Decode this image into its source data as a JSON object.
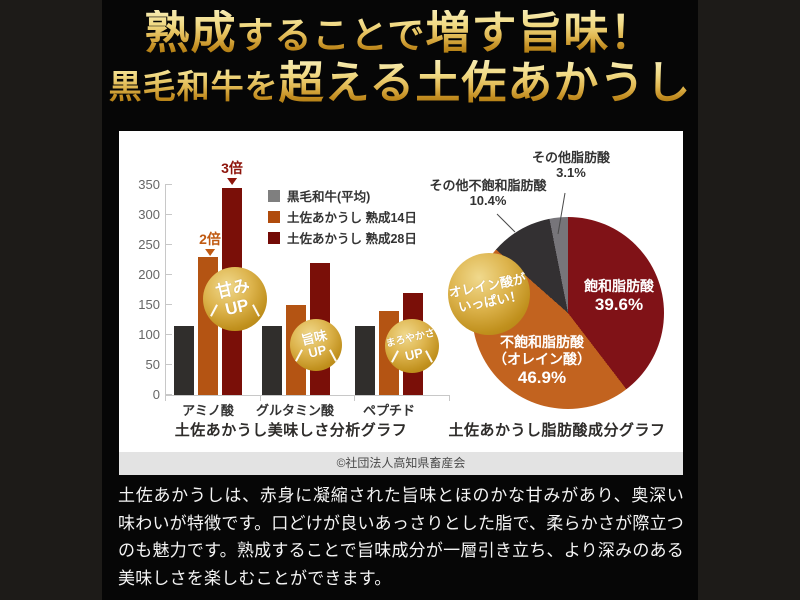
{
  "header": {
    "line1_seg1": "熟成",
    "line1_seg2": "することで",
    "line1_seg3": "増す旨味！",
    "line2_seg1": "黒毛和牛を",
    "line2_seg2": "超える土佐あかうし",
    "gold_top": "#f1da84",
    "gold_bottom": "#a8770f"
  },
  "chart_data": [
    {
      "type": "bar",
      "title": "土佐あかうし美味しさ分析グラフ",
      "categories": [
        "アミノ酸",
        "グルタミン酸",
        "ペプチド"
      ],
      "series": [
        {
          "name": "黒毛和牛(平均)",
          "color": "#7f7f7f",
          "bar_color": "#302e2c",
          "values": [
            115,
            115,
            115
          ]
        },
        {
          "name": "土佐あかうし 熟成14日",
          "color": "#b04b0c",
          "bar_color": "#b45413",
          "values": [
            230,
            150,
            140
          ]
        },
        {
          "name": "土佐あかうし 熟成28日",
          "color": "#730a06",
          "bar_color": "#7a0f08",
          "values": [
            345,
            220,
            170
          ]
        }
      ],
      "ylim": [
        0,
        350
      ],
      "yticks": [
        350,
        300,
        250,
        200,
        150,
        100,
        50,
        0
      ],
      "legend_position": "top-center",
      "grid": false,
      "annotations": [
        {
          "label": "2倍",
          "color": "#c05a12"
        },
        {
          "label": "3倍",
          "color": "#8e150c"
        }
      ]
    },
    {
      "type": "pie",
      "title": "土佐あかうし脂肪酸成分グラフ",
      "start_angle_deg": 0,
      "direction": "clockwise",
      "slices": [
        {
          "name": "飽和脂肪酸",
          "pct": 39.6,
          "pct_label": "39.6%",
          "color": "#801217"
        },
        {
          "name": "不飽和脂肪酸",
          "name2": "（オレイン酸）",
          "pct": 46.9,
          "pct_label": "46.9%",
          "color": "#c2631f"
        },
        {
          "name": "その他不飽和脂肪酸",
          "pct": 10.4,
          "pct_label": "10.4%",
          "color": "#333032"
        },
        {
          "name": "その他脂肪酸",
          "pct": 3.1,
          "pct_label": "3.1%",
          "color": "#77757a"
        }
      ]
    }
  ],
  "badges": [
    {
      "line1": "甘み",
      "line2": "UP"
    },
    {
      "line1": "旨味",
      "line2": "UP"
    },
    {
      "line1": "まろやかさ",
      "line2": "UP"
    },
    {
      "line1": "オレイン酸が",
      "line2": "いっぱい！"
    }
  ],
  "badge_gold_color": "#d8ab3e",
  "copyright": "©社団法人高知県畜産会",
  "description": "土佐あかうしは、赤身に凝縮された旨味とほのかな甘みがあり、奥深い味わいが特徴です。口どけが良いあっさりとした脂で、柔らかさが際立つのも魅力です。熟成することで旨味成分が一層引き立ち、より深みのある美味しさを楽しむことができます。"
}
